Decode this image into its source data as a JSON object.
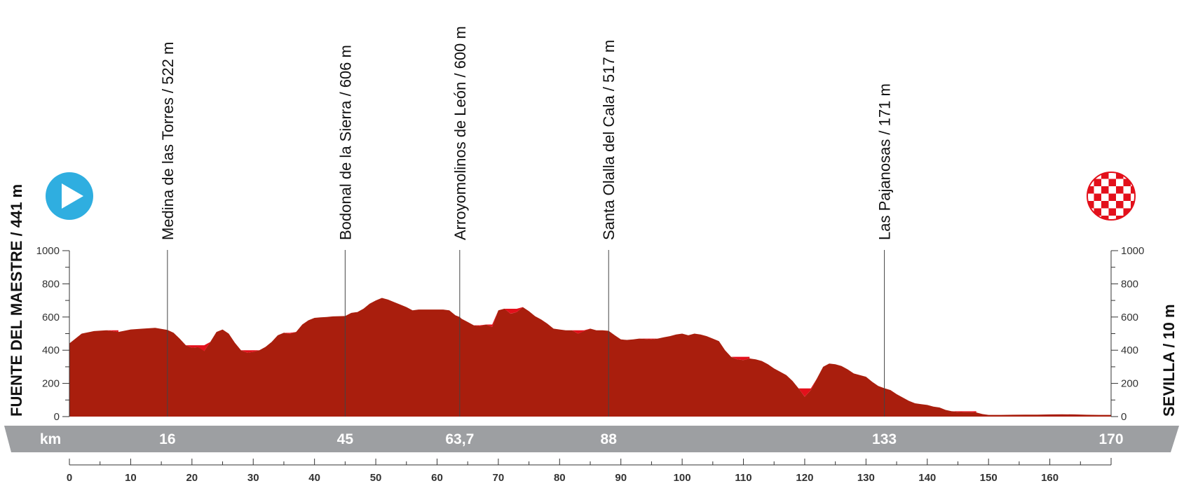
{
  "colors": {
    "profile_fill": "#a91e0d",
    "climb_fill": "#e3101b",
    "band": "#9d9fa2",
    "start_icon": "#2faee0",
    "finish_icon": "#e3101b"
  },
  "icons": {
    "start": "play-icon",
    "finish": "checkered-flag-icon"
  },
  "start_label": "FUENTE DEL MAESTRE / 441 m",
  "finish_label": "SEVILLA / 10 m",
  "km_band": {
    "unit": "km",
    "points": [
      "16",
      "45",
      "63,7",
      "88",
      "133",
      "170"
    ]
  },
  "chart_data": {
    "type": "area",
    "title": "",
    "xlabel": "km",
    "ylabel": "",
    "xlim": [
      0,
      170
    ],
    "ylim": [
      0,
      1000
    ],
    "x_ticks": [
      0,
      10,
      20,
      30,
      40,
      50,
      60,
      70,
      80,
      90,
      100,
      110,
      120,
      130,
      140,
      150,
      160
    ],
    "x_tick_labels": [
      "0",
      "10",
      "20",
      "30",
      "40",
      "50",
      "60",
      "70",
      "80",
      "90",
      "100",
      "110",
      "120",
      "130",
      "140",
      "150",
      "160"
    ],
    "y_ticks": [
      0,
      200,
      400,
      600,
      800,
      1000
    ],
    "y_tick_labels": [
      "0",
      "200",
      "400",
      "600",
      "800",
      "1000"
    ],
    "grid": false,
    "series": [
      {
        "name": "",
        "x": [
          0,
          2,
          4,
          6,
          8,
          10,
          12,
          14,
          16,
          17,
          18,
          19,
          20,
          21,
          21.5,
          22,
          23,
          24,
          25,
          26,
          27,
          28,
          29,
          30,
          31,
          32,
          33,
          34,
          35,
          36,
          37,
          38,
          39,
          40,
          41,
          42,
          43,
          44,
          45,
          46,
          47,
          48,
          49,
          50,
          51,
          52,
          53,
          54,
          55,
          56,
          57,
          58,
          59,
          60,
          61,
          62,
          63,
          63.7,
          64,
          65,
          66,
          67,
          68,
          69,
          70,
          71,
          72,
          73,
          74,
          75,
          76,
          77,
          78,
          79,
          80,
          81,
          82,
          83,
          84,
          85,
          86,
          87,
          88,
          89,
          90,
          91,
          92,
          93,
          94,
          95,
          96,
          97,
          98,
          99,
          100,
          101,
          102,
          103,
          104,
          105,
          106,
          107,
          108,
          109,
          110,
          111,
          112,
          113,
          114,
          115,
          116,
          117,
          118,
          119,
          120,
          121,
          122,
          123,
          124,
          125,
          126,
          127,
          128,
          129,
          130,
          131,
          132,
          133,
          134,
          135,
          136,
          137,
          138,
          139,
          140,
          141,
          142,
          143,
          144,
          145,
          146,
          147,
          148,
          149,
          150,
          152,
          154,
          156,
          158,
          160,
          162,
          164,
          166,
          168,
          170
        ],
        "y": [
          441,
          500,
          515,
          520,
          510,
          525,
          530,
          535,
          522,
          505,
          470,
          430,
          415,
          418,
          410,
          395,
          450,
          510,
          525,
          500,
          445,
          400,
          385,
          390,
          400,
          420,
          450,
          490,
          505,
          498,
          510,
          555,
          580,
          595,
          598,
          600,
          604,
          605,
          606,
          625,
          630,
          650,
          680,
          700,
          715,
          705,
          690,
          675,
          660,
          640,
          645,
          645,
          645,
          645,
          645,
          640,
          610,
          600,
          590,
          570,
          550,
          545,
          555,
          540,
          640,
          650,
          620,
          630,
          660,
          635,
          605,
          585,
          560,
          530,
          525,
          520,
          520,
          500,
          515,
          530,
          520,
          520,
          517,
          490,
          465,
          462,
          465,
          470,
          468,
          465,
          470,
          478,
          485,
          495,
          500,
          490,
          500,
          495,
          485,
          470,
          455,
          400,
          360,
          345,
          340,
          350,
          345,
          335,
          315,
          290,
          270,
          250,
          215,
          170,
          120,
          160,
          230,
          300,
          320,
          315,
          305,
          285,
          260,
          250,
          240,
          210,
          185,
          171,
          160,
          135,
          115,
          95,
          80,
          75,
          70,
          60,
          55,
          40,
          32,
          28,
          27,
          27,
          25,
          15,
          10,
          10,
          11,
          12,
          12,
          13,
          14,
          13,
          11,
          10,
          10
        ]
      }
    ],
    "climbs": [
      {
        "x": [
          0,
          2,
          4,
          6,
          8
        ]
      },
      {
        "x": [
          19,
          20,
          21,
          22,
          23,
          24,
          25
        ]
      },
      {
        "x": [
          28,
          29,
          30,
          31,
          32,
          33,
          34,
          35,
          36,
          37,
          38,
          39,
          40,
          41,
          42,
          43,
          44,
          45,
          46,
          47,
          48,
          49,
          50,
          51
        ]
      },
      {
        "x": [
          66,
          67,
          68,
          69,
          70
        ]
      },
      {
        "x": [
          71,
          72,
          73,
          74
        ]
      },
      {
        "x": [
          82,
          83,
          84,
          85
        ]
      },
      {
        "x": [
          93,
          94,
          95,
          96,
          97,
          98,
          99,
          100
        ]
      },
      {
        "x": [
          108,
          109,
          110,
          111
        ]
      },
      {
        "x": [
          119,
          120,
          121,
          122,
          123
        ]
      },
      {
        "x": [
          144,
          145,
          146,
          147,
          148
        ]
      }
    ],
    "annotations": [
      {
        "x": 16,
        "label": "Medina de las Torres / 522 m"
      },
      {
        "x": 45,
        "label": "Bodonal de la Sierra / 606 m"
      },
      {
        "x": 63.7,
        "label": "Arroyomolinos de León / 600 m"
      },
      {
        "x": 88,
        "label": "Santa Olalla del Cala / 517 m"
      },
      {
        "x": 133,
        "label": "Las Pajanosas / 171 m"
      }
    ]
  }
}
